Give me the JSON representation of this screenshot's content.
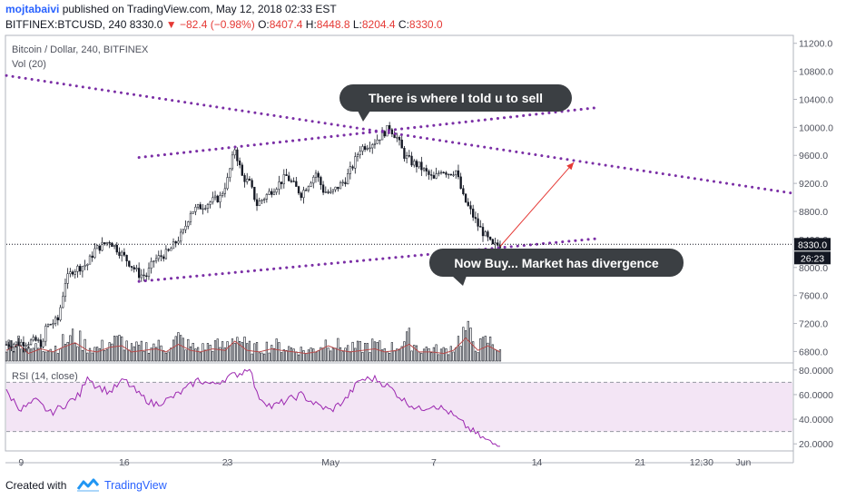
{
  "header": {
    "author": "mojtabaivi",
    "published": " published on TradingView.com, May 12, 2018 02:33 EST",
    "symbol_line": "BITFINEX:BTCUSD, 240",
    "last": "8330.0",
    "change": "−82.4 (−0.98%)",
    "o_label": "O:",
    "o_value": "8407.4",
    "h_label": "H:",
    "h_value": "8448.8",
    "l_label": "L:",
    "l_value": "8204.4",
    "c_label": "C:",
    "c_value": "8330.0"
  },
  "legend": {
    "title": "Bitcoin / Dollar, 240, BITFINEX",
    "volume": "Vol (20)",
    "rsi": "RSI (14, close)"
  },
  "annotations": {
    "sell": "There is where I told u to sell",
    "buy": "Now Buy... Market has divergence"
  },
  "footer": {
    "created_with": "Created with",
    "brand": "TradingView"
  },
  "colors": {
    "trendline": "#7b2fa6",
    "arrow": "#e53935",
    "candle": "#131722",
    "rsi_line": "#9c27b0",
    "rsi_band": "#f3e5f5",
    "volume_ma": "#b74a4a",
    "callout": "#3b3f43"
  },
  "chart_data": {
    "type": "candlestick",
    "price_axis": {
      "ticks": [
        6800,
        7200,
        7600,
        8000,
        8400,
        8800,
        9200,
        9600,
        10000,
        10400,
        10800,
        11200
      ],
      "tick_labels": [
        "6800.0",
        "7200.0",
        "7600.0",
        "8000.0",
        "8400.0",
        "8800.0",
        "9200.0",
        "9600.0",
        "10000.0",
        "10400.0",
        "10800.0",
        "11200.0"
      ],
      "last_price_label": "8330.0",
      "countdown_label": "26:23",
      "range": [
        6650,
        11300
      ]
    },
    "rsi_axis": {
      "ticks": [
        20,
        40,
        60,
        80
      ],
      "tick_labels": [
        "20.0000",
        "40.0000",
        "60.0000",
        "80.0000"
      ],
      "band": [
        30,
        70
      ],
      "range": [
        15,
        85
      ]
    },
    "time_axis": {
      "labels": [
        "9",
        "16",
        "23",
        "May",
        "7",
        "14",
        "21",
        "12:30",
        "Jun"
      ],
      "label_bar_index": [
        6,
        48,
        90,
        132,
        174,
        216,
        258,
        283,
        300
      ],
      "last_bar_index": 201,
      "bar_range": [
        0,
        320
      ]
    },
    "price_series": {
      "anchor_bar_index": [
        0,
        12,
        15,
        16,
        21,
        24,
        27,
        33,
        36,
        42,
        48,
        54,
        57,
        60,
        66,
        72,
        75,
        81,
        87,
        90,
        93,
        96,
        99,
        102,
        108,
        111,
        114,
        120,
        126,
        129,
        132,
        138,
        141,
        144,
        150,
        153,
        156,
        159,
        162,
        165,
        168,
        171,
        174,
        177,
        180,
        183,
        186,
        189,
        192,
        195,
        198,
        201
      ],
      "anchor_close": [
        6900,
        6950,
        6900,
        7150,
        7250,
        7800,
        7960,
        8050,
        8250,
        8380,
        8150,
        7900,
        7880,
        8100,
        8220,
        8500,
        8800,
        8900,
        9000,
        9250,
        9700,
        9300,
        9200,
        8900,
        9100,
        9200,
        9300,
        9050,
        9350,
        9100,
        9050,
        9250,
        9450,
        9700,
        9800,
        9900,
        10000,
        9850,
        9600,
        9500,
        9450,
        9350,
        9250,
        9400,
        9350,
        9380,
        9000,
        8800,
        8600,
        8450,
        8300,
        8330
      ]
    },
    "volume_series": {
      "bar_index_range": [
        0,
        201
      ],
      "relative_levels": [
        0.35,
        0.55,
        0.25,
        0.4,
        0.3,
        0.45,
        0.6,
        0.35,
        0.3,
        0.45,
        0.5,
        0.3,
        0.35,
        0.4,
        0.3,
        0.55,
        0.35,
        0.3,
        0.4,
        0.35,
        0.65,
        0.35,
        0.3,
        0.4,
        0.35,
        0.3,
        0.25,
        0.3,
        0.5,
        0.35,
        0.3,
        0.35,
        0.4,
        0.3,
        0.35,
        0.55,
        0.3,
        0.3,
        0.25,
        0.35,
        0.75,
        0.35,
        0.5,
        0.3
      ]
    },
    "rsi_series": {
      "anchor_bar_index": [
        0,
        6,
        12,
        18,
        24,
        30,
        33,
        36,
        42,
        48,
        54,
        60,
        66,
        72,
        78,
        84,
        90,
        96,
        99,
        102,
        108,
        114,
        120,
        126,
        132,
        138,
        144,
        150,
        156,
        162,
        168,
        174,
        180,
        186,
        192,
        198,
        201
      ],
      "values": [
        62,
        48,
        55,
        45,
        52,
        60,
        76,
        68,
        62,
        72,
        60,
        52,
        56,
        63,
        72,
        68,
        74,
        78,
        83,
        60,
        50,
        55,
        60,
        52,
        47,
        56,
        72,
        73,
        66,
        55,
        48,
        52,
        46,
        36,
        27,
        20,
        20
      ]
    },
    "trendlines": [
      {
        "from": [
          0,
          10740
        ],
        "to": [
          320,
          9060
        ],
        "style": "dotted"
      },
      {
        "from": [
          54,
          9570
        ],
        "to": [
          240,
          10280
        ],
        "style": "dotted"
      },
      {
        "from": [
          54,
          7800
        ],
        "to": [
          240,
          8410
        ],
        "style": "dotted"
      }
    ],
    "arrow": {
      "from": [
        201,
        8300
      ],
      "to": [
        231,
        9500
      ]
    },
    "last_price": 8330
  }
}
